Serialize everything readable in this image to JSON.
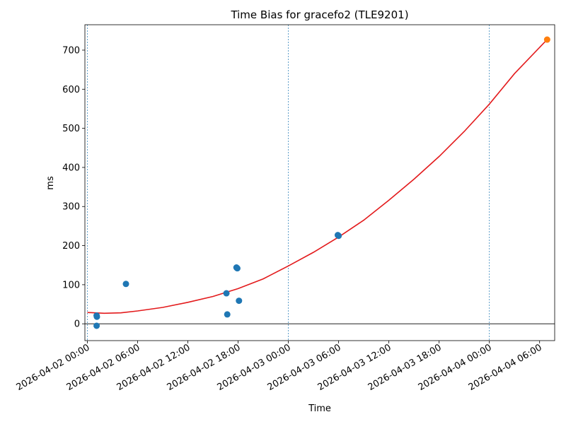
{
  "chart_data": {
    "type": "scatter",
    "title": "Time Bias for gracefo2 (TLE9201)",
    "xlabel": "Time",
    "ylabel": "ms",
    "xlim": [
      "2026-04-01 23:42",
      "2026-04-04 07:48"
    ],
    "ylim": [
      -43,
      765
    ],
    "x_ticks": [
      "2026-04-02 00:00",
      "2026-04-02 06:00",
      "2026-04-02 12:00",
      "2026-04-02 18:00",
      "2026-04-03 00:00",
      "2026-04-03 06:00",
      "2026-04-03 12:00",
      "2026-04-03 18:00",
      "2026-04-04 00:00",
      "2026-04-04 06:00"
    ],
    "y_ticks": [
      0,
      100,
      200,
      300,
      400,
      500,
      600,
      700
    ],
    "vertical_lines": [
      "2026-04-02 00:00",
      "2026-04-03 00:00",
      "2026-04-04 00:00"
    ],
    "horizontal_lines": [
      0
    ],
    "grid": false,
    "series": [
      {
        "kind": "points",
        "color": "#1f77b4",
        "points": [
          [
            "2026-04-02 01:06",
            21
          ],
          [
            "2026-04-02 01:08",
            18
          ],
          [
            "2026-04-02 01:06",
            -5
          ],
          [
            "2026-04-02 04:36",
            102
          ],
          [
            "2026-04-02 16:36",
            78
          ],
          [
            "2026-04-02 16:42",
            24
          ],
          [
            "2026-04-02 17:48",
            144
          ],
          [
            "2026-04-02 17:54",
            142
          ],
          [
            "2026-04-02 18:06",
            59
          ],
          [
            "2026-04-03 05:54",
            227
          ],
          [
            "2026-04-03 06:00",
            225
          ]
        ]
      },
      {
        "kind": "points",
        "color": "#ff7f0e",
        "points": [
          [
            "2026-04-04 06:54",
            727
          ]
        ]
      },
      {
        "kind": "curve",
        "color": "#e31a1c",
        "points": [
          [
            "2026-04-02 00:00",
            29
          ],
          [
            "2026-04-02 02:00",
            27
          ],
          [
            "2026-04-02 04:00",
            28
          ],
          [
            "2026-04-02 06:00",
            33
          ],
          [
            "2026-04-02 09:00",
            42
          ],
          [
            "2026-04-02 12:00",
            55
          ],
          [
            "2026-04-02 15:00",
            70
          ],
          [
            "2026-04-02 18:00",
            90
          ],
          [
            "2026-04-02 21:00",
            115
          ],
          [
            "2026-04-03 00:00",
            148
          ],
          [
            "2026-04-03 03:00",
            183
          ],
          [
            "2026-04-03 06:00",
            222
          ],
          [
            "2026-04-03 09:00",
            265
          ],
          [
            "2026-04-03 12:00",
            316
          ],
          [
            "2026-04-03 15:00",
            370
          ],
          [
            "2026-04-03 18:00",
            428
          ],
          [
            "2026-04-03 21:00",
            492
          ],
          [
            "2026-04-04 00:00",
            562
          ],
          [
            "2026-04-04 03:00",
            640
          ],
          [
            "2026-04-04 06:54",
            727
          ]
        ]
      }
    ]
  }
}
